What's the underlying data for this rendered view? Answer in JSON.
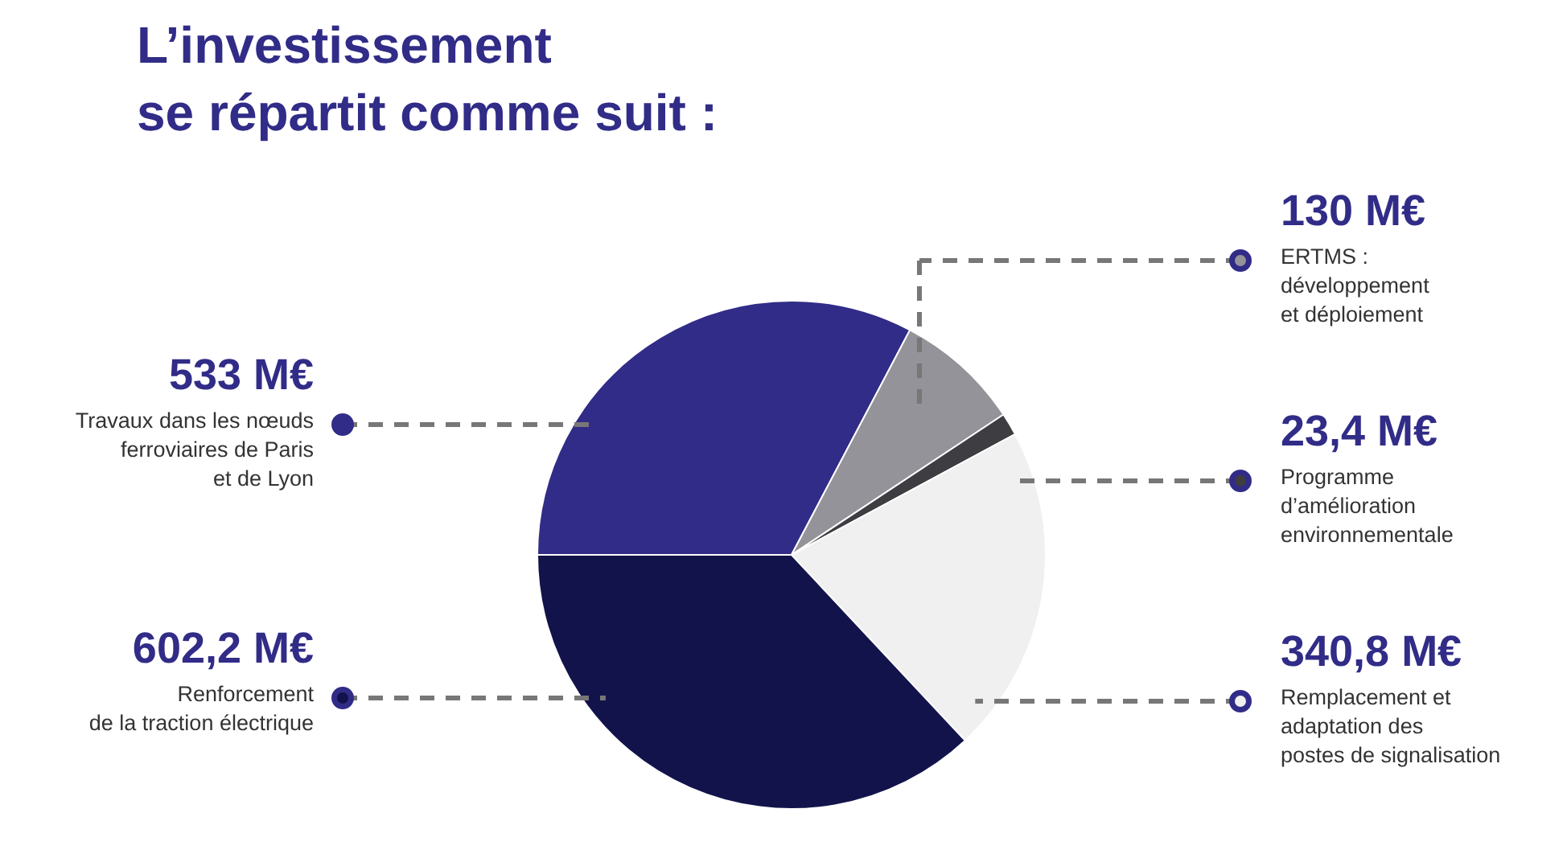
{
  "chart_data": {
    "type": "pie",
    "title": "L’investissement\nse répartit comme suit :",
    "categories": [
      "Travaux dans les nœuds\nferroviaires de Paris\net de Lyon",
      "ERTMS :\ndéveloppement\net déploiement",
      "Programme\nd’amélioration\nenvironnementale",
      "Remplacement et\nadaptation des\npostes de signalisation",
      "Renforcement\nde la traction électrique"
    ],
    "values": [
      533,
      130,
      23.4,
      340.8,
      602.2
    ],
    "value_labels": [
      "533 M€",
      "130 M€",
      "23,4 M€",
      "340,8 M€",
      "602,2 M€"
    ],
    "colors": [
      "#312c87",
      "#939399",
      "#3d3d42",
      "#f0f0f0",
      "#13134b"
    ],
    "legend": "right"
  }
}
